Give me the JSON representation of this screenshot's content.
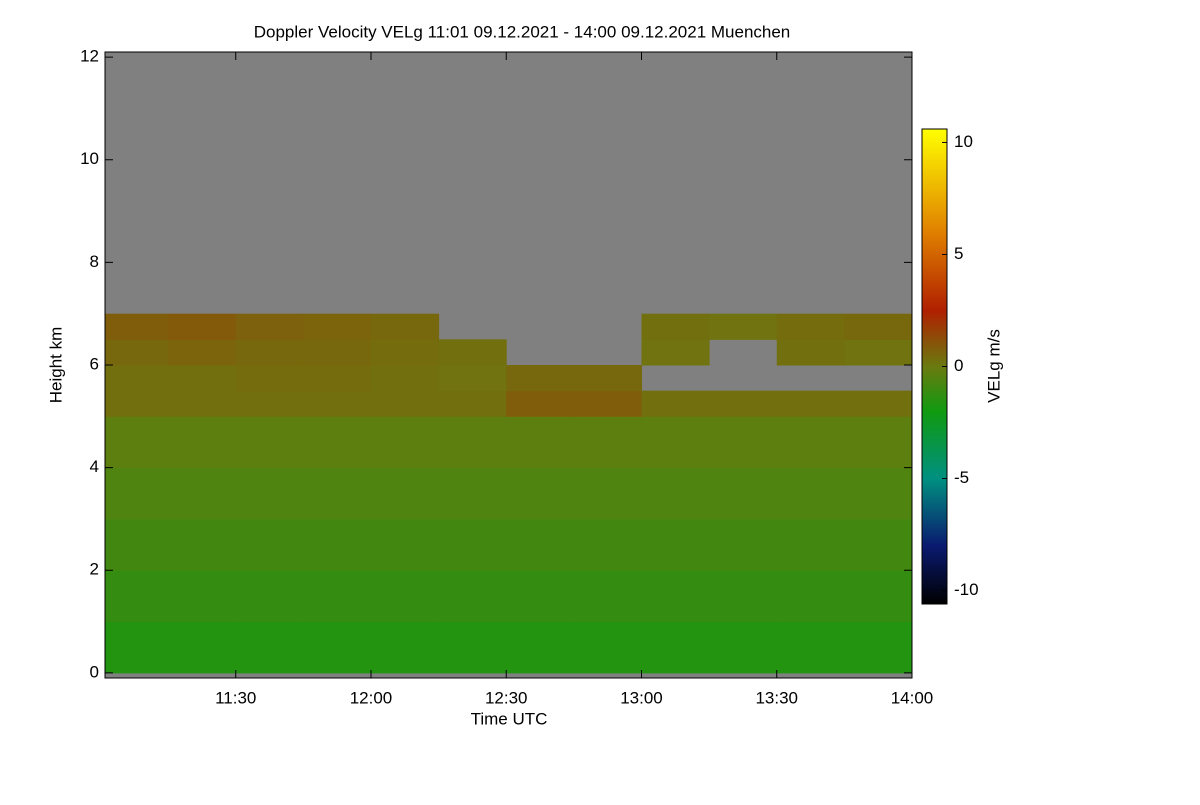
{
  "chart_data": {
    "type": "heatmap",
    "title": "Doppler Velocity VELg   11:01 09.12.2021 - 14:00 09.12.2021 Muenchen",
    "x_label": "Time UTC",
    "y_label": "Height km",
    "colorbar_label": "VELg m/s",
    "background": "#808080",
    "x_edges": [
      11.0167,
      11.25,
      11.5,
      11.75,
      12.0,
      12.25,
      12.5,
      12.75,
      13.0,
      13.25,
      13.5,
      13.75,
      14.0
    ],
    "y_edges": [
      0,
      1,
      2,
      3,
      4,
      5,
      5.5,
      6,
      6.5,
      7,
      12
    ],
    "values": [
      [
        -1.6,
        -1.6,
        -1.6,
        -1.6,
        -1.6,
        -1.6,
        -1.6,
        -1.6,
        -1.6,
        -1.6,
        -1.6,
        -1.6
      ],
      [
        -1.2,
        -1.2,
        -1.2,
        -1.2,
        -1.2,
        -1.2,
        -1.2,
        -1.2,
        -1.2,
        -1.2,
        -1.2,
        -1.2
      ],
      [
        -0.9,
        -0.9,
        -0.9,
        -0.9,
        -0.9,
        -0.9,
        -0.9,
        -0.9,
        -0.9,
        -0.9,
        -0.9,
        -0.9
      ],
      [
        -0.6,
        -0.6,
        -0.6,
        -0.6,
        -0.6,
        -0.6,
        -0.6,
        -0.6,
        -0.6,
        -0.6,
        -0.6,
        -0.6
      ],
      [
        -0.3,
        -0.3,
        -0.3,
        -0.3,
        -0.3,
        -0.3,
        -0.3,
        -0.3,
        -0.3,
        -0.3,
        -0.3,
        -0.3
      ],
      [
        0.3,
        0.3,
        0.3,
        0.3,
        0.3,
        0.3,
        0.8,
        0.8,
        0.3,
        0.3,
        0.3,
        0.3
      ],
      [
        0.3,
        0.3,
        0.4,
        0.4,
        0.3,
        0.2,
        0.5,
        0.5,
        null,
        null,
        null,
        null
      ],
      [
        0.5,
        0.6,
        0.5,
        0.5,
        0.4,
        0.3,
        null,
        null,
        0.2,
        null,
        0.3,
        0.2
      ],
      [
        0.8,
        0.9,
        0.7,
        0.6,
        0.5,
        null,
        null,
        null,
        0.3,
        0.2,
        0.4,
        0.5
      ],
      [
        null,
        null,
        null,
        null,
        null,
        null,
        null,
        null,
        null,
        null,
        null,
        null
      ]
    ],
    "xlim": [
      11.0167,
      14.0
    ],
    "xticks": [
      {
        "value": 11.5,
        "label": "11:30"
      },
      {
        "value": 12.0,
        "label": "12:00"
      },
      {
        "value": 12.5,
        "label": "12:30"
      },
      {
        "value": 13.0,
        "label": "13:00"
      },
      {
        "value": 13.5,
        "label": "13:30"
      },
      {
        "value": 14.0,
        "label": "14:00"
      }
    ],
    "ylim": [
      -0.1,
      12.1
    ],
    "yticks": [
      0,
      2,
      4,
      6,
      8,
      10,
      12
    ],
    "clim": [
      -10.6,
      10.6
    ],
    "cticks": [
      -10,
      -5,
      0,
      5,
      10
    ],
    "colorscale": [
      [
        -10.6,
        "#000000"
      ],
      [
        -8,
        "#0a1a70"
      ],
      [
        -5,
        "#009080"
      ],
      [
        -2,
        "#109a10"
      ],
      [
        0,
        "#6a7a10"
      ],
      [
        2.5,
        "#b02000"
      ],
      [
        6,
        "#e08000"
      ],
      [
        10.6,
        "#ffff00"
      ]
    ]
  }
}
